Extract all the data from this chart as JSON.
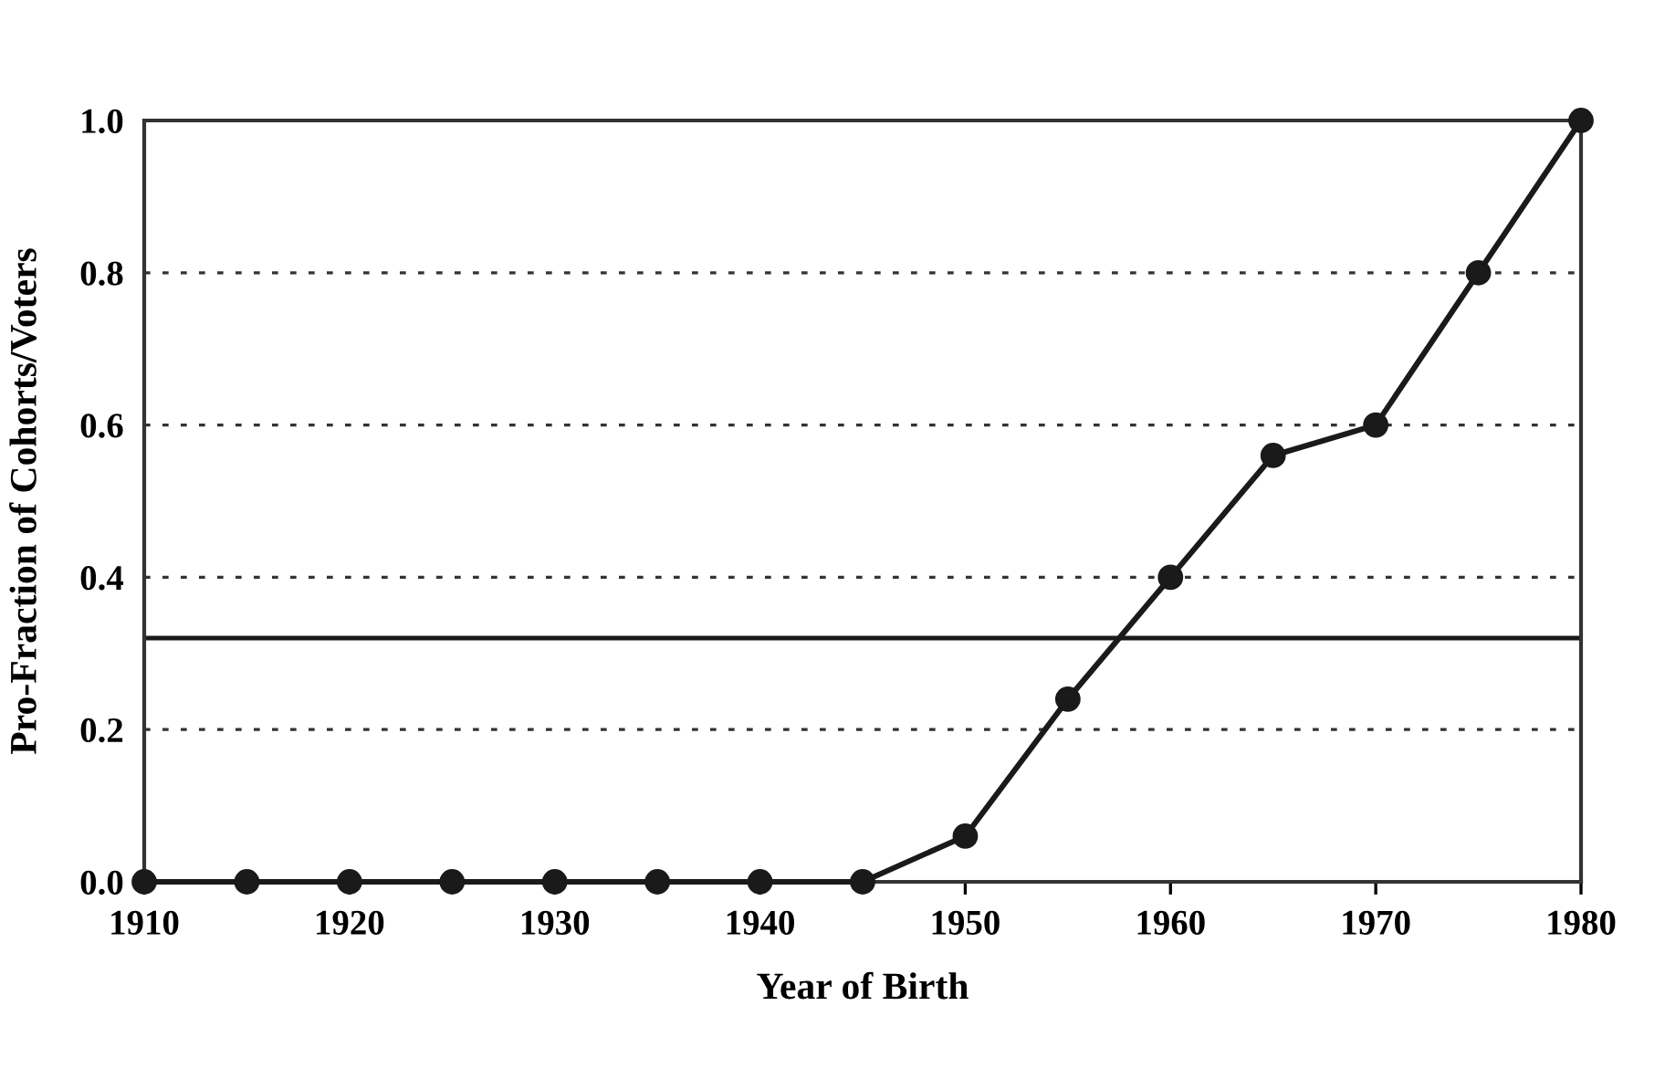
{
  "chart_data": {
    "type": "line",
    "xlabel": "Year of Birth",
    "ylabel": "Pro-Fraction of Cohorts/Voters",
    "x": [
      1910,
      1915,
      1920,
      1925,
      1930,
      1935,
      1940,
      1945,
      1950,
      1955,
      1960,
      1965,
      1970,
      1975,
      1980
    ],
    "series": [
      {
        "color": "#1a1a1a",
        "values": [
          0,
          0,
          0,
          0,
          0,
          0,
          0,
          0,
          0.06,
          0.24,
          0.4,
          0.56,
          0.6,
          0.8,
          1.0
        ]
      }
    ],
    "xlim": [
      1910,
      1980
    ],
    "xticks": [
      1910,
      1920,
      1930,
      1940,
      1950,
      1960,
      1970,
      1980
    ],
    "ylim": [
      0,
      1.0
    ],
    "yticks": [
      {
        "value": 0,
        "label": "0.0"
      },
      {
        "value": 0.2,
        "label": "0.2"
      },
      {
        "value": 0.4,
        "label": "0.4"
      },
      {
        "value": 0.6,
        "label": "0.6"
      },
      {
        "value": 0.8,
        "label": "0.8"
      },
      {
        "value": 1.0,
        "label": "1.0"
      }
    ],
    "ref_lines": [
      {
        "axis": "y",
        "value": 0.32,
        "color": "#1a1a1a",
        "line_style": "solid"
      }
    ],
    "grid": "y",
    "marker": "circle",
    "line_style": "solid",
    "legend": false
  }
}
